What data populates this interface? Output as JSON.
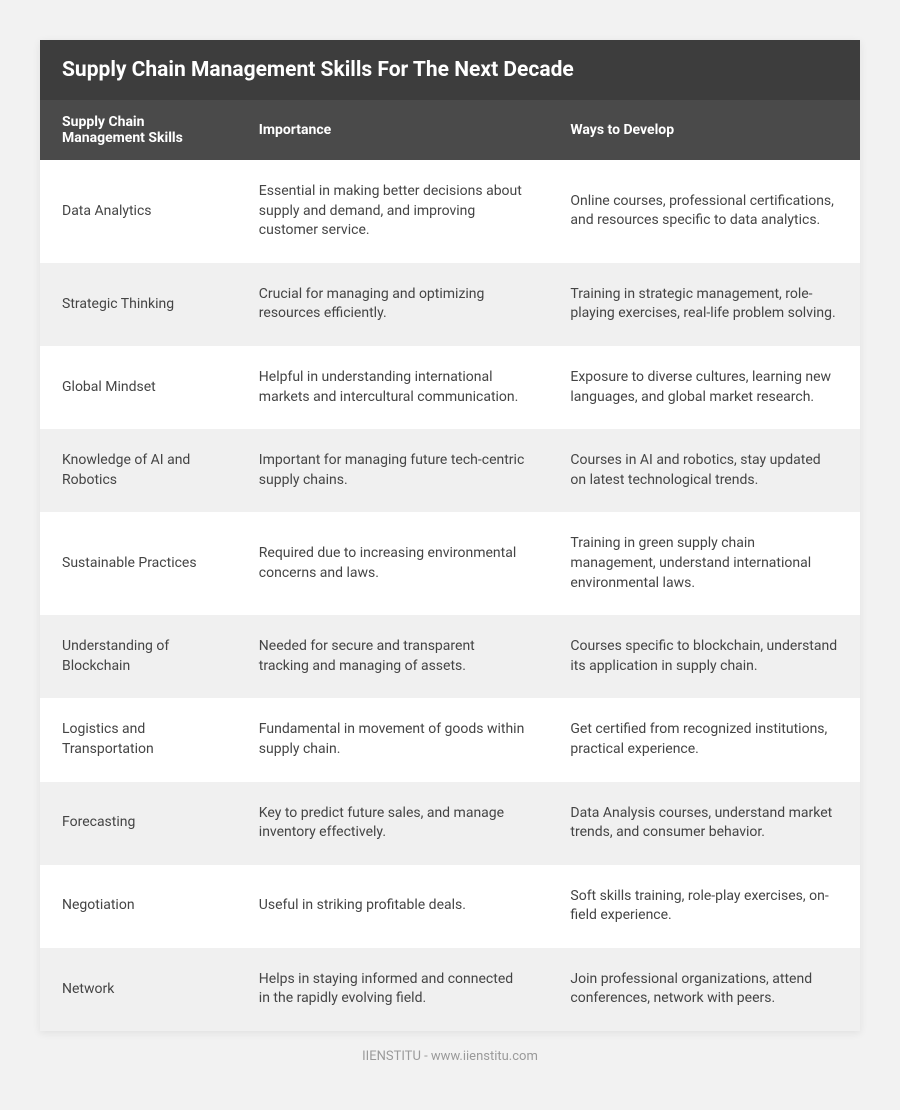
{
  "title": "Supply Chain Management Skills For The Next Decade",
  "columns": [
    "Supply Chain Management Skills",
    "Importance",
    "Ways to Develop"
  ],
  "rows": [
    {
      "skill": "Data Analytics",
      "importance": "Essential in making better decisions about supply and demand, and improving customer service.",
      "develop": "Online courses, professional certifications, and resources specific to data analytics."
    },
    {
      "skill": "Strategic Thinking",
      "importance": "Crucial for managing and optimizing resources efficiently.",
      "develop": "Training in strategic management, role-playing exercises, real-life problem solving."
    },
    {
      "skill": "Global Mindset",
      "importance": "Helpful in understanding international markets and intercultural communication.",
      "develop": "Exposure to diverse cultures, learning new languages, and global market research."
    },
    {
      "skill": "Knowledge of AI and Robotics",
      "importance": "Important for managing future tech-centric supply chains.",
      "develop": "Courses in AI and robotics, stay updated on latest technological trends."
    },
    {
      "skill": "Sustainable Practices",
      "importance": "Required due to increasing environmental concerns and laws.",
      "develop": "Training in green supply chain management, understand international environmental laws."
    },
    {
      "skill": "Understanding of Blockchain",
      "importance": "Needed for secure and transparent tracking and managing of assets.",
      "develop": "Courses specific to blockchain, understand its application in supply chain."
    },
    {
      "skill": "Logistics and Transportation",
      "importance": "Fundamental in movement of goods within supply chain.",
      "develop": "Get certified from recognized institutions, practical experience."
    },
    {
      "skill": "Forecasting",
      "importance": "Key to predict future sales, and manage inventory effectively.",
      "develop": "Data Analysis courses, understand market trends, and consumer behavior."
    },
    {
      "skill": "Negotiation",
      "importance": "Useful in striking profitable deals.",
      "develop": "Soft skills training, role-play exercises, on-field experience."
    },
    {
      "skill": "Network",
      "importance": "Helps in staying informed and connected in the rapidly evolving field.",
      "develop": "Join professional organizations, attend conferences, network with peers."
    }
  ],
  "footer": "IIENSTITU - www.iienstitu.com"
}
